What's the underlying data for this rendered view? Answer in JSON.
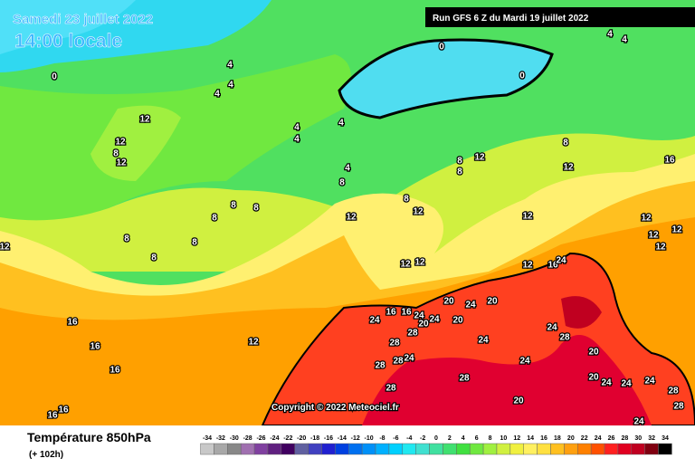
{
  "header": {
    "valid_date": "Samedi 23 juillet 2022",
    "local_time": "14:00 locale",
    "run": "Run GFS 6 Z du Mardi 19 juillet 2022"
  },
  "copyright": "Copyright © 2022 Meteociel.fr",
  "footer": {
    "title": "Température 850hPa",
    "lead_time": "(+ 102h)"
  },
  "scale": {
    "values": [
      -34,
      -32,
      -30,
      -28,
      -26,
      -24,
      -22,
      -20,
      -18,
      -16,
      -14,
      -12,
      -10,
      -8,
      -6,
      -4,
      -2,
      0,
      2,
      4,
      6,
      8,
      10,
      12,
      14,
      16,
      18,
      20,
      22,
      24,
      26,
      28,
      30,
      32,
      34
    ],
    "colors": [
      "#c8c8c8",
      "#a8a8a8",
      "#888888",
      "#a070b0",
      "#8040a0",
      "#602080",
      "#400060",
      "#6060a0",
      "#4040c0",
      "#2020d0",
      "#0040e0",
      "#0070f0",
      "#0090f8",
      "#00b0ff",
      "#00d0ff",
      "#20e8f0",
      "#40e0d0",
      "#40e0a0",
      "#40e070",
      "#40e040",
      "#70e840",
      "#a0f040",
      "#d0f040",
      "#f0f040",
      "#fff060",
      "#ffe040",
      "#ffc020",
      "#ffa010",
      "#ff8000",
      "#ff5000",
      "#ff2020",
      "#e00020",
      "#c00020",
      "#800010",
      "#000000"
    ]
  },
  "contour_labels": [
    0,
    0,
    0,
    4,
    4,
    4,
    4,
    4,
    4,
    4,
    4,
    4,
    12,
    12,
    12,
    8,
    8,
    12,
    8,
    12,
    16,
    8,
    8,
    8,
    8,
    8,
    8,
    8,
    12,
    12,
    8,
    8,
    12,
    12,
    12,
    12,
    12,
    12,
    12,
    12,
    12,
    16,
    24,
    20,
    24,
    20,
    24,
    16,
    16,
    24,
    20,
    24,
    20,
    28,
    24,
    28,
    24,
    28,
    28,
    24,
    28,
    20,
    24,
    28,
    28,
    12,
    16,
    16,
    16,
    16,
    16,
    20,
    24,
    24,
    24,
    28,
    28,
    20,
    24
  ]
}
